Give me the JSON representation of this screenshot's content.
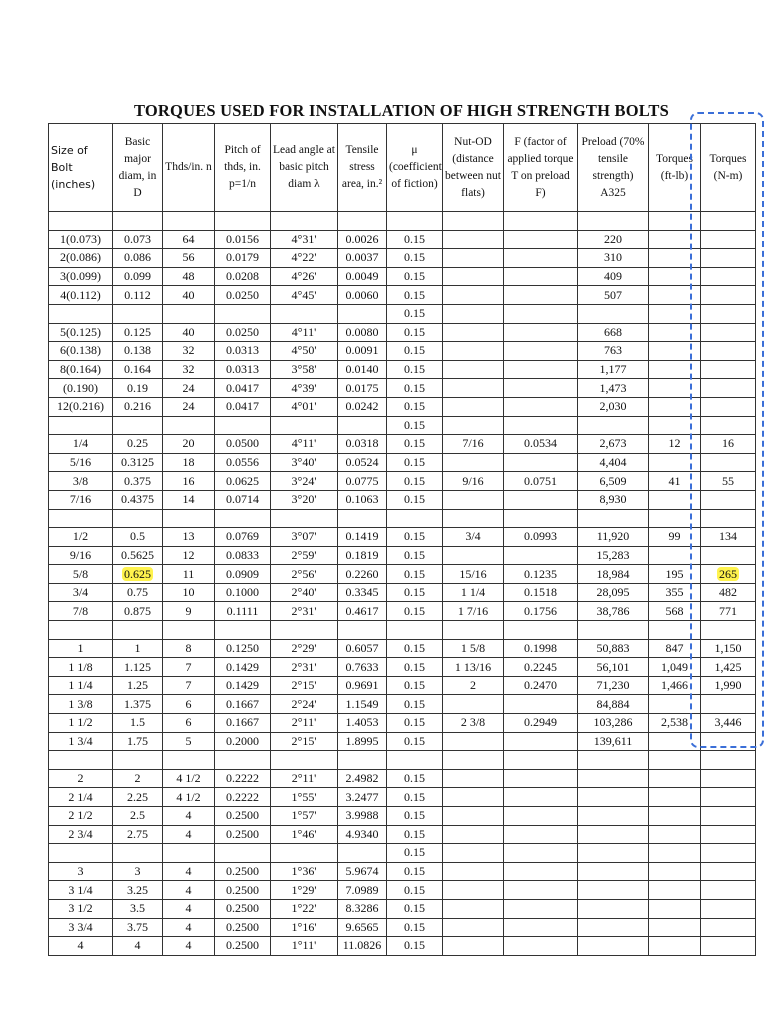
{
  "title": "TORQUES USED FOR INSTALLATION OF HIGH STRENGTH BOLTS",
  "table": {
    "header": [
      "Size of Bolt (inches)",
      "Basic major diam, in D",
      "Thds/in. n",
      "Pitch of thds, in. p=1/n",
      "Lead angle at basic pitch diam λ",
      "Tensile stress area, in.²",
      "μ (coefficient of fiction)",
      "Nut-OD (distance between nut flats)",
      "F (factor of applied torque T on preload F)",
      "Preload (70% tensile strength) A325",
      "Torques (ft-lb)",
      "Torques (N-m)"
    ],
    "rows": [
      [
        null,
        null,
        null,
        null,
        null,
        null,
        null,
        null,
        null,
        null,
        null,
        null
      ],
      [
        "1(0.073)",
        "0.073",
        "64",
        "0.0156",
        "4°31'",
        "0.0026",
        "0.15",
        null,
        null,
        "220",
        null,
        null
      ],
      [
        "2(0.086)",
        "0.086",
        "56",
        "0.0179",
        "4°22'",
        "0.0037",
        "0.15",
        null,
        null,
        "310",
        null,
        null
      ],
      [
        "3(0.099)",
        "0.099",
        "48",
        "0.0208",
        "4°26'",
        "0.0049",
        "0.15",
        null,
        null,
        "409",
        null,
        null
      ],
      [
        "4(0.112)",
        "0.112",
        "40",
        "0.0250",
        "4°45'",
        "0.0060",
        "0.15",
        null,
        null,
        "507",
        null,
        null
      ],
      [
        null,
        null,
        null,
        null,
        null,
        null,
        "0.15",
        null,
        null,
        null,
        null,
        null
      ],
      [
        "5(0.125)",
        "0.125",
        "40",
        "0.0250",
        "4°11'",
        "0.0080",
        "0.15",
        null,
        null,
        "668",
        null,
        null
      ],
      [
        "6(0.138)",
        "0.138",
        "32",
        "0.0313",
        "4°50'",
        "0.0091",
        "0.15",
        null,
        null,
        "763",
        null,
        null
      ],
      [
        "8(0.164)",
        "0.164",
        "32",
        "0.0313",
        "3°58'",
        "0.0140",
        "0.15",
        null,
        null,
        "1,177",
        null,
        null
      ],
      [
        "(0.190)",
        "0.19",
        "24",
        "0.0417",
        "4°39'",
        "0.0175",
        "0.15",
        null,
        null,
        "1,473",
        null,
        null
      ],
      [
        "12(0.216)",
        "0.216",
        "24",
        "0.0417",
        "4°01'",
        "0.0242",
        "0.15",
        null,
        null,
        "2,030",
        null,
        null
      ],
      [
        null,
        null,
        null,
        null,
        null,
        null,
        "0.15",
        null,
        null,
        null,
        null,
        null
      ],
      [
        "1/4",
        "0.25",
        "20",
        "0.0500",
        "4°11'",
        "0.0318",
        "0.15",
        "7/16",
        "0.0534",
        "2,673",
        "12",
        "16"
      ],
      [
        "5/16",
        "0.3125",
        "18",
        "0.0556",
        "3°40'",
        "0.0524",
        "0.15",
        null,
        null,
        "4,404",
        null,
        null
      ],
      [
        "3/8",
        "0.375",
        "16",
        "0.0625",
        "3°24'",
        "0.0775",
        "0.15",
        "9/16",
        "0.0751",
        "6,509",
        "41",
        "55"
      ],
      [
        "7/16",
        "0.4375",
        "14",
        "0.0714",
        "3°20'",
        "0.1063",
        "0.15",
        null,
        null,
        "8,930",
        null,
        null
      ],
      [
        null,
        null,
        null,
        null,
        null,
        null,
        null,
        null,
        null,
        null,
        null,
        null
      ],
      [
        "1/2",
        "0.5",
        "13",
        "0.0769",
        "3°07'",
        "0.1419",
        "0.15",
        "3/4",
        "0.0993",
        "11,920",
        "99",
        "134"
      ],
      [
        "9/16",
        "0.5625",
        "12",
        "0.0833",
        "2°59'",
        "0.1819",
        "0.15",
        null,
        null,
        "15,283",
        null,
        null
      ],
      [
        "5/8",
        "0.625",
        "11",
        "0.0909",
        "2°56'",
        "0.2260",
        "0.15",
        "15/16",
        "0.1235",
        "18,984",
        "195",
        "265"
      ],
      [
        "3/4",
        "0.75",
        "10",
        "0.1000",
        "2°40'",
        "0.3345",
        "0.15",
        "1 1/4",
        "0.1518",
        "28,095",
        "355",
        "482"
      ],
      [
        "7/8",
        "0.875",
        "9",
        "0.1111",
        "2°31'",
        "0.4617",
        "0.15",
        "1 7/16",
        "0.1756",
        "38,786",
        "568",
        "771"
      ],
      [
        null,
        null,
        null,
        null,
        null,
        null,
        null,
        null,
        null,
        null,
        null,
        null
      ],
      [
        "1",
        "1",
        "8",
        "0.1250",
        "2°29'",
        "0.6057",
        "0.15",
        "1 5/8",
        "0.1998",
        "50,883",
        "847",
        "1,150"
      ],
      [
        "1 1/8",
        "1.125",
        "7",
        "0.1429",
        "2°31'",
        "0.7633",
        "0.15",
        "1 13/16",
        "0.2245",
        "56,101",
        "1,049",
        "1,425"
      ],
      [
        "1 1/4",
        "1.25",
        "7",
        "0.1429",
        "2°15'",
        "0.9691",
        "0.15",
        "2",
        "0.2470",
        "71,230",
        "1,466",
        "1,990"
      ],
      [
        "1 3/8",
        "1.375",
        "6",
        "0.1667",
        "2°24'",
        "1.1549",
        "0.15",
        null,
        null,
        "84,884",
        null,
        null
      ],
      [
        "1 1/2",
        "1.5",
        "6",
        "0.1667",
        "2°11'",
        "1.4053",
        "0.15",
        "2 3/8",
        "0.2949",
        "103,286",
        "2,538",
        "3,446"
      ],
      [
        "1 3/4",
        "1.75",
        "5",
        "0.2000",
        "2°15'",
        "1.8995",
        "0.15",
        null,
        null,
        "139,611",
        null,
        null
      ],
      [
        null,
        null,
        null,
        null,
        null,
        null,
        null,
        null,
        null,
        null,
        null,
        null
      ],
      [
        "2",
        "2",
        "4 1/2",
        "0.2222",
        "2°11'",
        "2.4982",
        "0.15",
        null,
        null,
        null,
        null,
        null
      ],
      [
        "2 1/4",
        "2.25",
        "4 1/2",
        "0.2222",
        "1°55'",
        "3.2477",
        "0.15",
        null,
        null,
        null,
        null,
        null
      ],
      [
        "2 1/2",
        "2.5",
        "4",
        "0.2500",
        "1°57'",
        "3.9988",
        "0.15",
        null,
        null,
        null,
        null,
        null
      ],
      [
        "2 3/4",
        "2.75",
        "4",
        "0.2500",
        "1°46'",
        "4.9340",
        "0.15",
        null,
        null,
        null,
        null,
        null
      ],
      [
        null,
        null,
        null,
        null,
        null,
        null,
        "0.15",
        null,
        null,
        null,
        null,
        null
      ],
      [
        "3",
        "3",
        "4",
        "0.2500",
        "1°36'",
        "5.9674",
        "0.15",
        null,
        null,
        null,
        null,
        null
      ],
      [
        "3 1/4",
        "3.25",
        "4",
        "0.2500",
        "1°29'",
        "7.0989",
        "0.15",
        null,
        null,
        null,
        null,
        null
      ],
      [
        "3 1/2",
        "3.5",
        "4",
        "0.2500",
        "1°22'",
        "8.3286",
        "0.15",
        null,
        null,
        null,
        null,
        null
      ],
      [
        "3 3/4",
        "3.75",
        "4",
        "0.2500",
        "1°16'",
        "9.6565",
        "0.15",
        null,
        null,
        null,
        null,
        null
      ],
      [
        "4",
        "4",
        "4",
        "0.2500",
        "1°11'",
        "11.0826",
        "0.15",
        null,
        null,
        null,
        null,
        null
      ]
    ]
  }
}
